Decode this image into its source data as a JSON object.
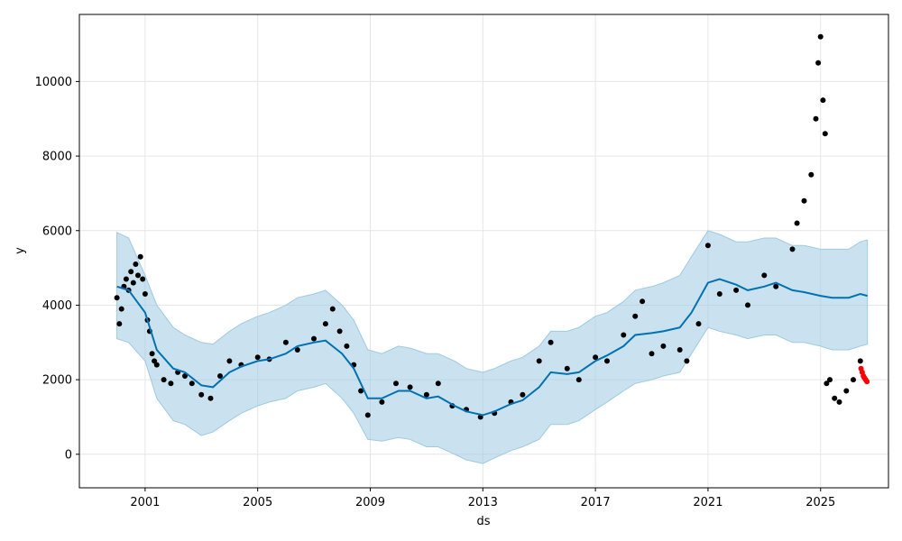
{
  "chart_data": {
    "type": "line",
    "title": "",
    "xlabel": "ds",
    "ylabel": "y",
    "x_ticks": [
      "2001",
      "2005",
      "2009",
      "2013",
      "2017",
      "2021",
      "2025"
    ],
    "y_ticks": [
      "0",
      "2000",
      "4000",
      "6000",
      "8000",
      "10000"
    ],
    "xlim": [
      "1998-09-01",
      "2027-06-01"
    ],
    "ylim": [
      -900,
      11800
    ],
    "grid": true,
    "colors": {
      "observed": "#000000",
      "forecast": "#0072B2",
      "interval": "#9ECAE1",
      "test": "#FF0000"
    },
    "series": [
      {
        "kind": "observed_points",
        "points": [
          [
            "2000-01-01",
            4200
          ],
          [
            "2000-02-01",
            3500
          ],
          [
            "2000-03-01",
            3900
          ],
          [
            "2000-04-01",
            4500
          ],
          [
            "2000-05-01",
            4700
          ],
          [
            "2000-06-01",
            4400
          ],
          [
            "2000-07-01",
            4900
          ],
          [
            "2000-08-01",
            4600
          ],
          [
            "2000-09-01",
            5100
          ],
          [
            "2000-10-01",
            4800
          ],
          [
            "2000-11-01",
            5300
          ],
          [
            "2000-12-01",
            4700
          ],
          [
            "2001-01-01",
            4300
          ],
          [
            "2001-02-01",
            3600
          ],
          [
            "2001-03-01",
            3300
          ],
          [
            "2001-04-01",
            2700
          ],
          [
            "2001-05-01",
            2500
          ],
          [
            "2001-06-01",
            2400
          ],
          [
            "2001-09-01",
            2000
          ],
          [
            "2001-12-01",
            1900
          ],
          [
            "2002-03-01",
            2200
          ],
          [
            "2002-06-01",
            2100
          ],
          [
            "2002-09-01",
            1900
          ],
          [
            "2003-01-01",
            1600
          ],
          [
            "2003-05-01",
            1500
          ],
          [
            "2003-09-01",
            2100
          ],
          [
            "2004-01-01",
            2500
          ],
          [
            "2004-06-01",
            2400
          ],
          [
            "2005-01-01",
            2600
          ],
          [
            "2005-06-01",
            2550
          ],
          [
            "2006-01-01",
            3000
          ],
          [
            "2006-06-01",
            2800
          ],
          [
            "2007-01-01",
            3100
          ],
          [
            "2007-06-01",
            3500
          ],
          [
            "2007-09-01",
            3900
          ],
          [
            "2007-12-01",
            3300
          ],
          [
            "2008-03-01",
            2900
          ],
          [
            "2008-06-01",
            2400
          ],
          [
            "2008-09-01",
            1700
          ],
          [
            "2008-12-01",
            1050
          ],
          [
            "2009-06-01",
            1400
          ],
          [
            "2009-12-01",
            1900
          ],
          [
            "2010-06-01",
            1800
          ],
          [
            "2011-01-01",
            1600
          ],
          [
            "2011-06-01",
            1900
          ],
          [
            "2011-12-01",
            1300
          ],
          [
            "2012-06-01",
            1200
          ],
          [
            "2012-12-01",
            1000
          ],
          [
            "2013-06-01",
            1100
          ],
          [
            "2014-01-01",
            1400
          ],
          [
            "2014-06-01",
            1600
          ],
          [
            "2015-01-01",
            2500
          ],
          [
            "2015-06-01",
            3000
          ],
          [
            "2016-01-01",
            2300
          ],
          [
            "2016-06-01",
            2000
          ],
          [
            "2017-01-01",
            2600
          ],
          [
            "2017-06-01",
            2500
          ],
          [
            "2018-01-01",
            3200
          ],
          [
            "2018-06-01",
            3700
          ],
          [
            "2018-09-01",
            4100
          ],
          [
            "2019-01-01",
            2700
          ],
          [
            "2019-06-01",
            2900
          ],
          [
            "2020-01-01",
            2800
          ],
          [
            "2020-04-01",
            2500
          ],
          [
            "2020-09-01",
            3500
          ],
          [
            "2021-01-01",
            5600
          ],
          [
            "2021-06-01",
            4300
          ],
          [
            "2022-01-01",
            4400
          ],
          [
            "2022-06-01",
            4000
          ],
          [
            "2023-01-01",
            4800
          ],
          [
            "2023-06-01",
            4500
          ],
          [
            "2024-01-01",
            5500
          ],
          [
            "2024-03-01",
            6200
          ],
          [
            "2024-06-01",
            6800
          ],
          [
            "2024-09-01",
            7500
          ],
          [
            "2024-11-01",
            9000
          ],
          [
            "2024-12-01",
            10500
          ],
          [
            "2025-01-01",
            11200
          ],
          [
            "2025-02-01",
            9500
          ],
          [
            "2025-03-01",
            8600
          ],
          [
            "2025-03-20",
            1900
          ],
          [
            "2025-05-01",
            2000
          ],
          [
            "2025-07-01",
            1500
          ],
          [
            "2025-09-01",
            1400
          ],
          [
            "2025-12-01",
            1700
          ],
          [
            "2026-03-01",
            2000
          ],
          [
            "2026-06-01",
            2500
          ]
        ]
      },
      {
        "kind": "forecast_line",
        "points": [
          [
            "2000-01-01",
            4500
          ],
          [
            "2000-06-01",
            4400
          ],
          [
            "2001-01-01",
            3800
          ],
          [
            "2001-06-01",
            2800
          ],
          [
            "2002-01-01",
            2300
          ],
          [
            "2002-06-01",
            2200
          ],
          [
            "2003-01-01",
            1850
          ],
          [
            "2003-06-01",
            1800
          ],
          [
            "2004-01-01",
            2200
          ],
          [
            "2004-06-01",
            2350
          ],
          [
            "2005-01-01",
            2500
          ],
          [
            "2005-06-01",
            2550
          ],
          [
            "2006-01-01",
            2700
          ],
          [
            "2006-06-01",
            2900
          ],
          [
            "2007-01-01",
            3000
          ],
          [
            "2007-06-01",
            3050
          ],
          [
            "2008-01-01",
            2700
          ],
          [
            "2008-06-01",
            2300
          ],
          [
            "2008-12-01",
            1500
          ],
          [
            "2009-06-01",
            1500
          ],
          [
            "2010-01-01",
            1700
          ],
          [
            "2010-06-01",
            1700
          ],
          [
            "2011-01-01",
            1500
          ],
          [
            "2011-06-01",
            1550
          ],
          [
            "2012-01-01",
            1300
          ],
          [
            "2012-06-01",
            1150
          ],
          [
            "2013-01-01",
            1050
          ],
          [
            "2013-06-01",
            1150
          ],
          [
            "2014-01-01",
            1350
          ],
          [
            "2014-06-01",
            1450
          ],
          [
            "2015-01-01",
            1800
          ],
          [
            "2015-06-01",
            2200
          ],
          [
            "2016-01-01",
            2150
          ],
          [
            "2016-06-01",
            2200
          ],
          [
            "2017-01-01",
            2500
          ],
          [
            "2017-06-01",
            2650
          ],
          [
            "2018-01-01",
            2900
          ],
          [
            "2018-06-01",
            3200
          ],
          [
            "2019-01-01",
            3250
          ],
          [
            "2019-06-01",
            3300
          ],
          [
            "2020-01-01",
            3400
          ],
          [
            "2020-06-01",
            3800
          ],
          [
            "2021-01-01",
            4600
          ],
          [
            "2021-06-01",
            4700
          ],
          [
            "2022-01-01",
            4550
          ],
          [
            "2022-06-01",
            4400
          ],
          [
            "2023-01-01",
            4500
          ],
          [
            "2023-06-01",
            4600
          ],
          [
            "2024-01-01",
            4400
          ],
          [
            "2024-06-01",
            4350
          ],
          [
            "2025-01-01",
            4250
          ],
          [
            "2025-06-01",
            4200
          ],
          [
            "2026-01-01",
            4200
          ],
          [
            "2026-06-01",
            4300
          ],
          [
            "2026-09-01",
            4250
          ]
        ]
      },
      {
        "kind": "interval_upper",
        "points": [
          [
            "2000-01-01",
            5950
          ],
          [
            "2000-06-01",
            5800
          ],
          [
            "2001-01-01",
            4800
          ],
          [
            "2001-06-01",
            4000
          ],
          [
            "2002-01-01",
            3400
          ],
          [
            "2002-06-01",
            3200
          ],
          [
            "2003-01-01",
            3000
          ],
          [
            "2003-06-01",
            2950
          ],
          [
            "2004-01-01",
            3300
          ],
          [
            "2004-06-01",
            3500
          ],
          [
            "2005-01-01",
            3700
          ],
          [
            "2005-06-01",
            3800
          ],
          [
            "2006-01-01",
            4000
          ],
          [
            "2006-06-01",
            4200
          ],
          [
            "2007-01-01",
            4300
          ],
          [
            "2007-06-01",
            4400
          ],
          [
            "2008-01-01",
            4000
          ],
          [
            "2008-06-01",
            3600
          ],
          [
            "2008-12-01",
            2800
          ],
          [
            "2009-06-01",
            2700
          ],
          [
            "2010-01-01",
            2900
          ],
          [
            "2010-06-01",
            2850
          ],
          [
            "2011-01-01",
            2700
          ],
          [
            "2011-06-01",
            2700
          ],
          [
            "2012-01-01",
            2500
          ],
          [
            "2012-06-01",
            2300
          ],
          [
            "2013-01-01",
            2200
          ],
          [
            "2013-06-01",
            2300
          ],
          [
            "2014-01-01",
            2500
          ],
          [
            "2014-06-01",
            2600
          ],
          [
            "2015-01-01",
            2900
          ],
          [
            "2015-06-01",
            3300
          ],
          [
            "2016-01-01",
            3300
          ],
          [
            "2016-06-01",
            3400
          ],
          [
            "2017-01-01",
            3700
          ],
          [
            "2017-06-01",
            3800
          ],
          [
            "2018-01-01",
            4100
          ],
          [
            "2018-06-01",
            4400
          ],
          [
            "2019-01-01",
            4500
          ],
          [
            "2019-06-01",
            4600
          ],
          [
            "2020-01-01",
            4800
          ],
          [
            "2020-06-01",
            5300
          ],
          [
            "2021-01-01",
            6000
          ],
          [
            "2021-06-01",
            5900
          ],
          [
            "2022-01-01",
            5700
          ],
          [
            "2022-06-01",
            5700
          ],
          [
            "2023-01-01",
            5800
          ],
          [
            "2023-06-01",
            5800
          ],
          [
            "2024-01-01",
            5600
          ],
          [
            "2024-06-01",
            5600
          ],
          [
            "2025-01-01",
            5500
          ],
          [
            "2025-06-01",
            5500
          ],
          [
            "2026-01-01",
            5500
          ],
          [
            "2026-06-01",
            5700
          ],
          [
            "2026-09-01",
            5750
          ]
        ]
      },
      {
        "kind": "interval_lower",
        "points": [
          [
            "2000-01-01",
            3100
          ],
          [
            "2000-06-01",
            3000
          ],
          [
            "2001-01-01",
            2500
          ],
          [
            "2001-06-01",
            1500
          ],
          [
            "2002-01-01",
            900
          ],
          [
            "2002-06-01",
            800
          ],
          [
            "2003-01-01",
            500
          ],
          [
            "2003-06-01",
            600
          ],
          [
            "2004-01-01",
            900
          ],
          [
            "2004-06-01",
            1100
          ],
          [
            "2005-01-01",
            1300
          ],
          [
            "2005-06-01",
            1400
          ],
          [
            "2006-01-01",
            1500
          ],
          [
            "2006-06-01",
            1700
          ],
          [
            "2007-01-01",
            1800
          ],
          [
            "2007-06-01",
            1900
          ],
          [
            "2008-01-01",
            1500
          ],
          [
            "2008-06-01",
            1100
          ],
          [
            "2008-12-01",
            400
          ],
          [
            "2009-06-01",
            350
          ],
          [
            "2010-01-01",
            450
          ],
          [
            "2010-06-01",
            400
          ],
          [
            "2011-01-01",
            200
          ],
          [
            "2011-06-01",
            200
          ],
          [
            "2012-01-01",
            0
          ],
          [
            "2012-06-01",
            -150
          ],
          [
            "2013-01-01",
            -250
          ],
          [
            "2013-06-01",
            -100
          ],
          [
            "2014-01-01",
            100
          ],
          [
            "2014-06-01",
            200
          ],
          [
            "2015-01-01",
            400
          ],
          [
            "2015-06-01",
            800
          ],
          [
            "2016-01-01",
            800
          ],
          [
            "2016-06-01",
            900
          ],
          [
            "2017-01-01",
            1200
          ],
          [
            "2017-06-01",
            1400
          ],
          [
            "2018-01-01",
            1700
          ],
          [
            "2018-06-01",
            1900
          ],
          [
            "2019-01-01",
            2000
          ],
          [
            "2019-06-01",
            2100
          ],
          [
            "2020-01-01",
            2200
          ],
          [
            "2020-06-01",
            2700
          ],
          [
            "2021-01-01",
            3400
          ],
          [
            "2021-06-01",
            3300
          ],
          [
            "2022-01-01",
            3200
          ],
          [
            "2022-06-01",
            3100
          ],
          [
            "2023-01-01",
            3200
          ],
          [
            "2023-06-01",
            3200
          ],
          [
            "2024-01-01",
            3000
          ],
          [
            "2024-06-01",
            3000
          ],
          [
            "2025-01-01",
            2900
          ],
          [
            "2025-06-01",
            2800
          ],
          [
            "2026-01-01",
            2800
          ],
          [
            "2026-06-01",
            2900
          ],
          [
            "2026-09-01",
            2950
          ]
        ]
      },
      {
        "kind": "test_points",
        "points": [
          [
            "2026-06-10",
            2300
          ],
          [
            "2026-06-25",
            2200
          ],
          [
            "2026-07-10",
            2100
          ],
          [
            "2026-07-25",
            2050
          ],
          [
            "2026-08-10",
            2000
          ],
          [
            "2026-08-25",
            1950
          ]
        ]
      }
    ]
  }
}
